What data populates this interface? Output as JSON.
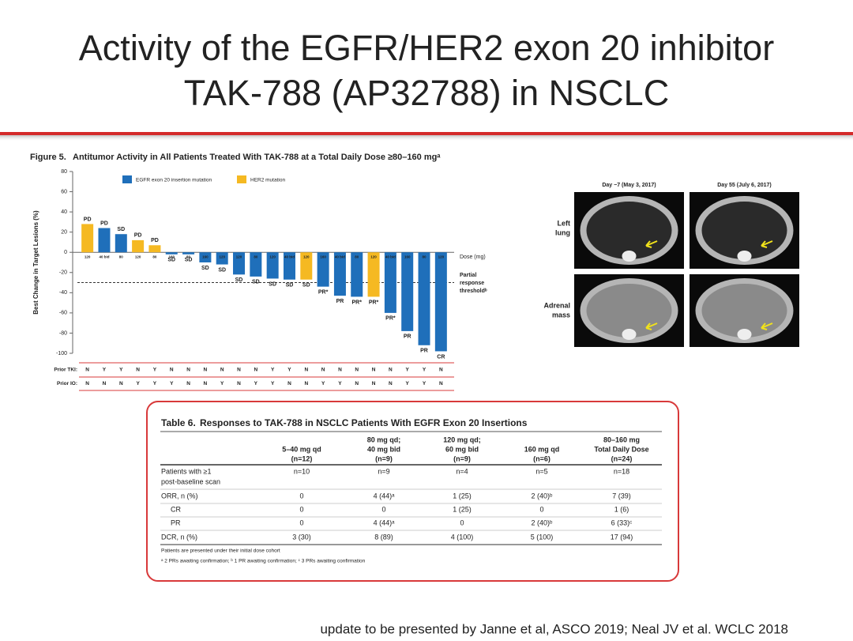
{
  "title": [
    "Activity of the EGFR/HER2 exon 20 inhibitor",
    "TAK-788 (AP32788) in NSCLC"
  ],
  "figure": {
    "label": "Figure 5.",
    "title": "Antitumor Activity in All Patients Treated With TAK-788 at a Total Daily Dose ≥80–160 mgᵃ"
  },
  "chart_data": {
    "type": "bar",
    "y_label": "Best Change in Target Lesions (%)",
    "ylim": [
      -100,
      80
    ],
    "yticks": [
      -100,
      -80,
      -60,
      -40,
      -20,
      0,
      20,
      40,
      60,
      80
    ],
    "series": [
      {
        "name": "EGFR exon 20 insertion mutation",
        "color": "#1f6fba",
        "values": [
          null,
          24,
          18,
          null,
          null,
          -2,
          -2,
          -10,
          -12,
          -22,
          -24,
          -26,
          -27,
          null,
          -34,
          -43,
          -44,
          null,
          -60,
          -78,
          -92,
          -98
        ]
      },
      {
        "name": "HER2 mutation",
        "color": "#f5b922",
        "values": [
          28,
          null,
          null,
          12,
          7,
          null,
          null,
          null,
          null,
          null,
          null,
          null,
          null,
          -27,
          null,
          null,
          null,
          -44,
          null,
          null,
          null,
          null
        ]
      }
    ],
    "bar_labels": [
      "PD",
      "PD",
      "SD",
      "PD",
      "PD",
      "SD",
      "SD",
      "SD",
      "SD",
      "SD",
      "SD",
      "SD",
      "SD",
      "SD",
      "PR*",
      "PR",
      "PR*",
      "PR*",
      "PR*",
      "PR",
      "PR",
      "CR"
    ],
    "doses": [
      "120",
      "40 bid",
      "80",
      "120",
      "80",
      "160",
      "80",
      "160",
      "120",
      "120",
      "80",
      "120",
      "40 bid",
      "120",
      "160",
      "40 bid",
      "80",
      "120",
      "40 bid",
      "160",
      "80",
      "120"
    ],
    "dose_title": "Dose (mg)",
    "threshold": -30,
    "threshold_label": [
      "Partial",
      "response",
      "thresholdᵇ"
    ],
    "rows": [
      {
        "label": "Prior TKI:",
        "values": [
          "N",
          "Y",
          "Y",
          "N",
          "Y",
          "N",
          "N",
          "N",
          "N",
          "N",
          "N",
          "Y",
          "Y",
          "N",
          "N",
          "N",
          "N",
          "N",
          "N",
          "Y",
          "Y",
          "N"
        ]
      },
      {
        "label": "Prior IO:",
        "values": [
          "N",
          "N",
          "N",
          "Y",
          "Y",
          "Y",
          "N",
          "N",
          "Y",
          "N",
          "Y",
          "Y",
          "N",
          "N",
          "Y",
          "Y",
          "N",
          "N",
          "N",
          "Y",
          "Y",
          "N"
        ]
      }
    ]
  },
  "images": {
    "columns": [
      "Day −7 (May 3, 2017)",
      "Day 55 (July 6, 2017)"
    ],
    "rows": [
      [
        "Left",
        "lung"
      ],
      [
        "Adrenal",
        "mass"
      ]
    ]
  },
  "table": {
    "label": "Table 6.",
    "title": "Responses to TAK-788 in NSCLC Patients With EGFR Exon 20 Insertions",
    "columns": [
      [
        "5–40 mg qd",
        "(n=12)"
      ],
      [
        "80 mg qd;",
        "40 mg bid",
        "(n=9)"
      ],
      [
        "120 mg qd;",
        "60 mg bid",
        "(n=9)"
      ],
      [
        "160 mg qd",
        "(n=6)"
      ],
      [
        "80–160 mg",
        "Total Daily Dose",
        "(n=24)"
      ]
    ],
    "rows": [
      {
        "label": [
          "Patients with ≥1",
          "post-baseline scan"
        ],
        "cells": [
          "n=10",
          "n=9",
          "n=4",
          "n=5",
          "n=18"
        ]
      },
      {
        "label": [
          "ORR, n (%)"
        ],
        "cells": [
          "0",
          "4 (44)ᵃ",
          "1 (25)",
          "2 (40)ᵇ",
          "7 (39)"
        ]
      },
      {
        "label": [
          "CR"
        ],
        "cells": [
          "0",
          "0",
          "1 (25)",
          "0",
          "1 (6)"
        ]
      },
      {
        "label": [
          "PR"
        ],
        "cells": [
          "0",
          "4 (44)ᵃ",
          "0",
          "2 (40)ᵇ",
          "6 (33)ᶜ"
        ]
      },
      {
        "label": [
          "DCR, n (%)"
        ],
        "cells": [
          "3 (30)",
          "8 (89)",
          "4 (100)",
          "5 (100)",
          "17 (94)"
        ]
      }
    ],
    "notes": [
      "Patients are presented under their initial dose cohort",
      "ᵃ 2 PRs awaiting confirmation; ᵇ 1 PR awaiting confirmation; ᶜ 3 PRs awaiting confirmation"
    ]
  },
  "footer": "update to be presented by Janne et al, ASCO 2019; Neal JV et al. WCLC 2018"
}
